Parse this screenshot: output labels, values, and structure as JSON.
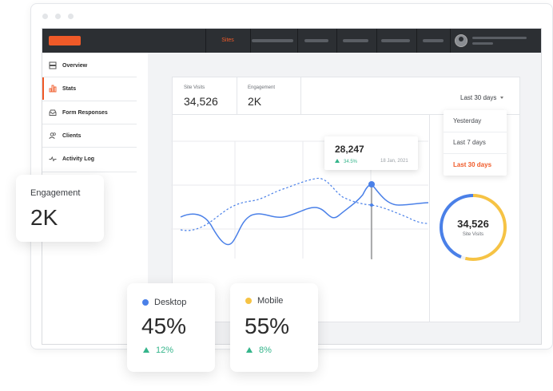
{
  "topbar": {
    "nav_active": "Sites"
  },
  "sidebar": {
    "items": [
      {
        "label": "Overview",
        "icon": "layout-icon"
      },
      {
        "label": "Stats",
        "icon": "bar-chart-icon",
        "active": true
      },
      {
        "label": "Form Responses",
        "icon": "inbox-icon"
      },
      {
        "label": "Clients",
        "icon": "users-icon"
      },
      {
        "label": "Activity Log",
        "icon": "activity-icon"
      }
    ]
  },
  "stats": {
    "site_visits": {
      "label": "Site Visits",
      "value": "34,526"
    },
    "engagement": {
      "label": "Engagement",
      "value": "2K"
    }
  },
  "range": {
    "selected": "Last 30 days",
    "options": [
      "Yesterday",
      "Last 7 days",
      "Last 30 days"
    ]
  },
  "tooltip": {
    "value": "28,247",
    "change": "34.5%",
    "date": "18 Jan, 2021"
  },
  "donut": {
    "value": "34,526",
    "label": "Site Visits",
    "desktop_fraction": 0.45,
    "mobile_fraction": 0.55
  },
  "cards": {
    "engagement": {
      "label": "Engagement",
      "value": "2K"
    },
    "desktop": {
      "label": "Desktop",
      "value": "45%",
      "change": "12%"
    },
    "mobile": {
      "label": "Mobile",
      "value": "55%",
      "change": "8%"
    }
  },
  "colors": {
    "accent": "#f05a28",
    "desktop": "#4a80e8",
    "mobile": "#f6c344",
    "positive": "#35b58b",
    "topbar": "#2c2f33"
  }
}
